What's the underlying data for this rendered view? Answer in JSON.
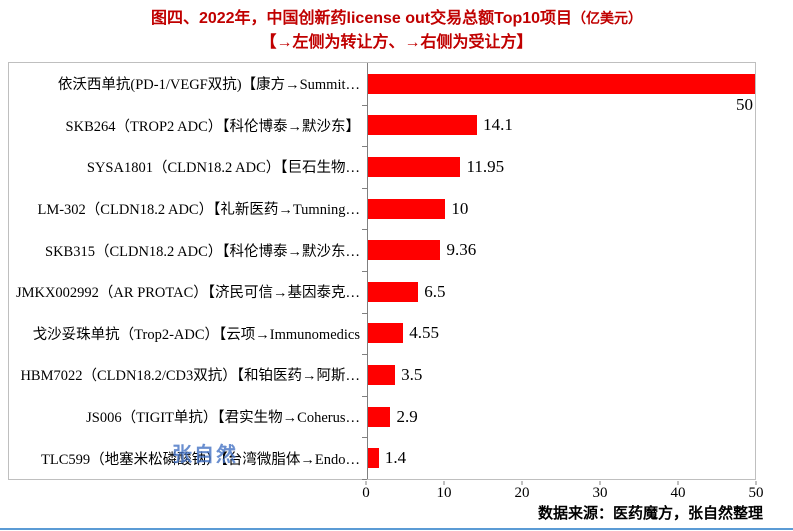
{
  "title": {
    "main": "图四、2022年，中国创新药license out交易总额Top10项目",
    "unit": "（亿美元）",
    "subtitle": "【→左侧为转让方、→右侧为受让方】"
  },
  "watermark": "张自然",
  "footer": "数据来源：医药魔方，张自然整理",
  "colors": {
    "bar": "#ff0000",
    "title": "#c00000",
    "watermark": "#4472c4",
    "axis": "#808080",
    "border": "#bfbfbf",
    "bottom_rule": "#5b9bd5"
  },
  "chart_data": {
    "type": "bar",
    "orientation": "horizontal",
    "title": "2022年，中国创新药license out交易总额Top10项目（亿美元）",
    "categories": [
      "依沃西单抗(PD-1/VEGF双抗)【康方→Summit…",
      "SKB264（TROP2 ADC）【科伦博泰→默沙东】",
      "SYSA1801（CLDN18.2 ADC）【巨石生物…",
      "LM-302（CLDN18.2 ADC）【礼新医药→Tumning…",
      "SKB315（CLDN18.2 ADC）【科伦博泰→默沙东…",
      "JMKX002992（AR PROTAC）【济民可信→基因泰克…",
      "戈沙妥珠单抗（Trop2-ADC）【云项→Immunomedics",
      "HBM7022（CLDN18.2/CD3双抗）【和铂医药→阿斯…",
      "JS006（TIGIT单抗）【君实生物→Coherus…",
      "TLC599（地塞米松磷酸钠）【台湾微脂体→Endo…"
    ],
    "values": [
      50,
      14.1,
      11.95,
      10,
      9.36,
      6.5,
      4.55,
      3.5,
      2.9,
      1.4
    ],
    "value_labels": [
      "50",
      "14.1",
      "11.95",
      "10",
      "9.36",
      "6.5",
      "4.55",
      "3.5",
      "2.9",
      "1.4"
    ],
    "xlim": [
      0,
      50
    ],
    "x_ticks": [
      0,
      10,
      20,
      30,
      40,
      50
    ],
    "grid": false,
    "legend": false,
    "label_below_indices": [
      0
    ]
  }
}
